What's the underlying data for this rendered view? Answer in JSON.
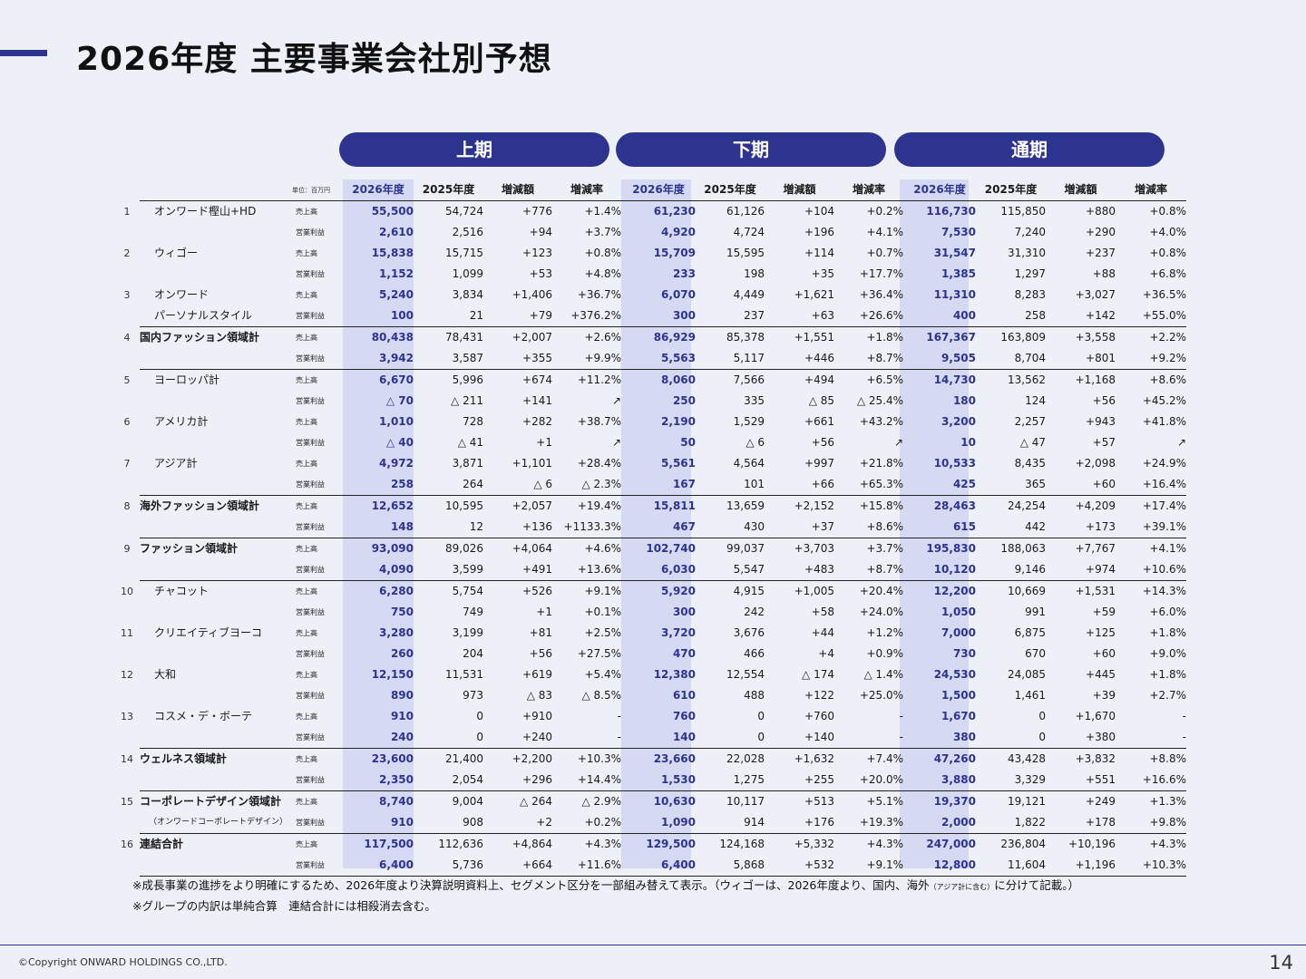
{
  "title": "2026年度 主要事業会社別予想",
  "periods": [
    "上期",
    "下期",
    "通期"
  ],
  "unit_note": "単位：百万円",
  "col_headers": [
    "2026年度",
    "2025年度",
    "増減額",
    "増減率"
  ],
  "labels": {
    "sales": "売上高",
    "op": "営業利益"
  },
  "rows": [
    {
      "no": "1",
      "name": "オンワード樫山+HD",
      "type": "sales",
      "vals": [
        "55,500",
        "54,724",
        "+776",
        "+1.4%",
        "61,230",
        "61,126",
        "+104",
        "+0.2%",
        "116,730",
        "115,850",
        "+880",
        "+0.8%"
      ]
    },
    {
      "no": "",
      "name": "",
      "type": "op",
      "vals": [
        "2,610",
        "2,516",
        "+94",
        "+3.7%",
        "4,920",
        "4,724",
        "+196",
        "+4.1%",
        "7,530",
        "7,240",
        "+290",
        "+4.0%"
      ]
    },
    {
      "no": "2",
      "name": "ウィゴー",
      "type": "sales",
      "vals": [
        "15,838",
        "15,715",
        "+123",
        "+0.8%",
        "15,709",
        "15,595",
        "+114",
        "+0.7%",
        "31,547",
        "31,310",
        "+237",
        "+0.8%"
      ]
    },
    {
      "no": "",
      "name": "",
      "type": "op",
      "vals": [
        "1,152",
        "1,099",
        "+53",
        "+4.8%",
        "233",
        "198",
        "+35",
        "+17.7%",
        "1,385",
        "1,297",
        "+88",
        "+6.8%"
      ]
    },
    {
      "no": "3",
      "name": "オンワード",
      "type": "sales",
      "vals": [
        "5,240",
        "3,834",
        "+1,406",
        "+36.7%",
        "6,070",
        "4,449",
        "+1,621",
        "+36.4%",
        "11,310",
        "8,283",
        "+3,027",
        "+36.5%"
      ]
    },
    {
      "no": "",
      "name": "パーソナルスタイル",
      "type": "op",
      "vals": [
        "100",
        "21",
        "+79",
        "+376.2%",
        "300",
        "237",
        "+63",
        "+26.6%",
        "400",
        "258",
        "+142",
        "+55.0%"
      ]
    },
    {
      "no": "4",
      "name": "国内ファッション領域計",
      "total": true,
      "type": "sales",
      "vals": [
        "80,438",
        "78,431",
        "+2,007",
        "+2.6%",
        "86,929",
        "85,378",
        "+1,551",
        "+1.8%",
        "167,367",
        "163,809",
        "+3,558",
        "+2.2%"
      ]
    },
    {
      "no": "",
      "name": "",
      "type": "op",
      "vals": [
        "3,942",
        "3,587",
        "+355",
        "+9.9%",
        "5,563",
        "5,117",
        "+446",
        "+8.7%",
        "9,505",
        "8,704",
        "+801",
        "+9.2%"
      ]
    },
    {
      "no": "5",
      "name": "ヨーロッパ計",
      "type": "sales",
      "vals": [
        "6,670",
        "5,996",
        "+674",
        "+11.2%",
        "8,060",
        "7,566",
        "+494",
        "+6.5%",
        "14,730",
        "13,562",
        "+1,168",
        "+8.6%"
      ]
    },
    {
      "no": "",
      "name": "",
      "type": "op",
      "vals": [
        "△ 70",
        "△ 211",
        "+141",
        "↗",
        "250",
        "335",
        "△ 85",
        "△ 25.4%",
        "180",
        "124",
        "+56",
        "+45.2%"
      ]
    },
    {
      "no": "6",
      "name": "アメリカ計",
      "type": "sales",
      "vals": [
        "1,010",
        "728",
        "+282",
        "+38.7%",
        "2,190",
        "1,529",
        "+661",
        "+43.2%",
        "3,200",
        "2,257",
        "+943",
        "+41.8%"
      ]
    },
    {
      "no": "",
      "name": "",
      "type": "op",
      "vals": [
        "△ 40",
        "△ 41",
        "+1",
        "↗",
        "50",
        "△ 6",
        "+56",
        "↗",
        "10",
        "△ 47",
        "+57",
        "↗"
      ]
    },
    {
      "no": "7",
      "name": "アジア計",
      "type": "sales",
      "vals": [
        "4,972",
        "3,871",
        "+1,101",
        "+28.4%",
        "5,561",
        "4,564",
        "+997",
        "+21.8%",
        "10,533",
        "8,435",
        "+2,098",
        "+24.9%"
      ]
    },
    {
      "no": "",
      "name": "",
      "type": "op",
      "vals": [
        "258",
        "264",
        "△ 6",
        "△ 2.3%",
        "167",
        "101",
        "+66",
        "+65.3%",
        "425",
        "365",
        "+60",
        "+16.4%"
      ]
    },
    {
      "no": "8",
      "name": "海外ファッション領域計",
      "total": true,
      "type": "sales",
      "vals": [
        "12,652",
        "10,595",
        "+2,057",
        "+19.4%",
        "15,811",
        "13,659",
        "+2,152",
        "+15.8%",
        "28,463",
        "24,254",
        "+4,209",
        "+17.4%"
      ]
    },
    {
      "no": "",
      "name": "",
      "type": "op",
      "vals": [
        "148",
        "12",
        "+136",
        "+1133.3%",
        "467",
        "430",
        "+37",
        "+8.6%",
        "615",
        "442",
        "+173",
        "+39.1%"
      ]
    },
    {
      "no": "9",
      "name": "ファッション領域計",
      "total": true,
      "type": "sales",
      "vals": [
        "93,090",
        "89,026",
        "+4,064",
        "+4.6%",
        "102,740",
        "99,037",
        "+3,703",
        "+3.7%",
        "195,830",
        "188,063",
        "+7,767",
        "+4.1%"
      ]
    },
    {
      "no": "",
      "name": "",
      "type": "op",
      "vals": [
        "4,090",
        "3,599",
        "+491",
        "+13.6%",
        "6,030",
        "5,547",
        "+483",
        "+8.7%",
        "10,120",
        "9,146",
        "+974",
        "+10.6%"
      ]
    },
    {
      "no": "10",
      "name": "チャコット",
      "type": "sales",
      "vals": [
        "6,280",
        "5,754",
        "+526",
        "+9.1%",
        "5,920",
        "4,915",
        "+1,005",
        "+20.4%",
        "12,200",
        "10,669",
        "+1,531",
        "+14.3%"
      ]
    },
    {
      "no": "",
      "name": "",
      "type": "op",
      "vals": [
        "750",
        "749",
        "+1",
        "+0.1%",
        "300",
        "242",
        "+58",
        "+24.0%",
        "1,050",
        "991",
        "+59",
        "+6.0%"
      ]
    },
    {
      "no": "11",
      "name": "クリエイティブヨーコ",
      "type": "sales",
      "vals": [
        "3,280",
        "3,199",
        "+81",
        "+2.5%",
        "3,720",
        "3,676",
        "+44",
        "+1.2%",
        "7,000",
        "6,875",
        "+125",
        "+1.8%"
      ]
    },
    {
      "no": "",
      "name": "",
      "type": "op",
      "vals": [
        "260",
        "204",
        "+56",
        "+27.5%",
        "470",
        "466",
        "+4",
        "+0.9%",
        "730",
        "670",
        "+60",
        "+9.0%"
      ]
    },
    {
      "no": "12",
      "name": "大和",
      "type": "sales",
      "vals": [
        "12,150",
        "11,531",
        "+619",
        "+5.4%",
        "12,380",
        "12,554",
        "△ 174",
        "△ 1.4%",
        "24,530",
        "24,085",
        "+445",
        "+1.8%"
      ]
    },
    {
      "no": "",
      "name": "",
      "type": "op",
      "vals": [
        "890",
        "973",
        "△ 83",
        "△ 8.5%",
        "610",
        "488",
        "+122",
        "+25.0%",
        "1,500",
        "1,461",
        "+39",
        "+2.7%"
      ]
    },
    {
      "no": "13",
      "name": "コスメ・デ・ボーテ",
      "type": "sales",
      "vals": [
        "910",
        "0",
        "+910",
        "-",
        "760",
        "0",
        "+760",
        "-",
        "1,670",
        "0",
        "+1,670",
        "-"
      ]
    },
    {
      "no": "",
      "name": "",
      "type": "op",
      "vals": [
        "240",
        "0",
        "+240",
        "-",
        "140",
        "0",
        "+140",
        "-",
        "380",
        "0",
        "+380",
        "-"
      ]
    },
    {
      "no": "14",
      "name": "ウェルネス領域計",
      "total": true,
      "type": "sales",
      "vals": [
        "23,600",
        "21,400",
        "+2,200",
        "+10.3%",
        "23,660",
        "22,028",
        "+1,632",
        "+7.4%",
        "47,260",
        "43,428",
        "+3,832",
        "+8.8%"
      ]
    },
    {
      "no": "",
      "name": "",
      "type": "op",
      "vals": [
        "2,350",
        "2,054",
        "+296",
        "+14.4%",
        "1,530",
        "1,275",
        "+255",
        "+20.0%",
        "3,880",
        "3,329",
        "+551",
        "+16.6%"
      ]
    },
    {
      "no": "15",
      "name": "コーポレートデザイン領域計",
      "total": true,
      "type": "sales",
      "vals": [
        "8,740",
        "9,004",
        "△ 264",
        "△ 2.9%",
        "10,630",
        "10,117",
        "+513",
        "+5.1%",
        "19,370",
        "19,121",
        "+249",
        "+1.3%"
      ]
    },
    {
      "no": "",
      "name": "（オンワードコーポレートデザイン）",
      "small": true,
      "type": "op",
      "vals": [
        "910",
        "908",
        "+2",
        "+0.2%",
        "1,090",
        "914",
        "+176",
        "+19.3%",
        "2,000",
        "1,822",
        "+178",
        "+9.8%"
      ]
    },
    {
      "no": "16",
      "name": "連結合計",
      "total": true,
      "type": "sales",
      "vals": [
        "117,500",
        "112,636",
        "+4,864",
        "+4.3%",
        "129,500",
        "124,168",
        "+5,332",
        "+4.3%",
        "247,000",
        "236,804",
        "+10,196",
        "+4.3%"
      ]
    },
    {
      "no": "",
      "name": "",
      "type": "op",
      "vals": [
        "6,400",
        "5,736",
        "+664",
        "+11.6%",
        "6,400",
        "5,868",
        "+532",
        "+9.1%",
        "12,800",
        "11,604",
        "+1,196",
        "+10.3%"
      ]
    }
  ],
  "notes": {
    "line1_a": "※成長事業の進捗をより明確にするため、2026年度より決算説明資料上、セグメント区分を一部組み替えて表示。（ウィゴーは、2026年度より、国内、海外",
    "line1_b": "（アジア計に含む）",
    "line1_c": "に分けて記載。）",
    "line2": "※グループの内訳は単純合算　連結合計には相殺消去含む。"
  },
  "footer": {
    "copyright": "©Copyright ONWARD HOLDINGS CO.,LTD.",
    "page_number": "14"
  },
  "colors": {
    "accent": "#2d3490",
    "highlight": "#d5d9f1",
    "background": "#eef0f8"
  }
}
